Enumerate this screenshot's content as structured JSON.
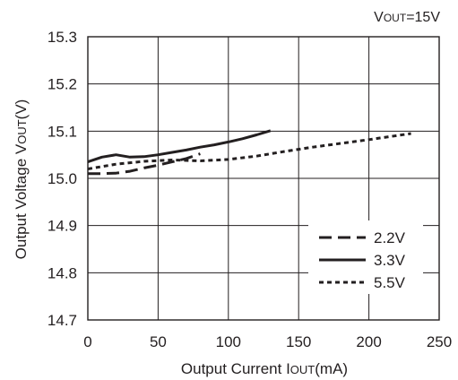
{
  "chart_data": {
    "type": "line",
    "condition": {
      "main": "V",
      "sub": "OUT",
      "tail": "=15V"
    },
    "xlabel": {
      "main": "Output Current I",
      "sub": "OUT",
      "tail": "(mA)"
    },
    "ylabel": {
      "main": "Output Voltage V",
      "sub": "OUT",
      "tail": "(V)"
    },
    "xlim": [
      0,
      250
    ],
    "ylim": [
      14.7,
      15.3
    ],
    "x_ticks": [
      "0",
      "50",
      "100",
      "150",
      "200",
      "250"
    ],
    "y_ticks": [
      "14.7",
      "14.8",
      "14.9",
      "15.0",
      "15.1",
      "15.2",
      "15.3"
    ],
    "grid": true,
    "legend_position": "bottom-right",
    "series": [
      {
        "name": "2.2V",
        "style": "long-dash",
        "x": [
          0,
          10,
          20,
          30,
          40,
          50,
          60,
          70,
          80
        ],
        "y": [
          15.01,
          15.01,
          15.011,
          15.015,
          15.022,
          15.028,
          15.035,
          15.042,
          15.052
        ]
      },
      {
        "name": "3.3V",
        "style": "solid",
        "x": [
          0,
          10,
          20,
          30,
          40,
          50,
          60,
          70,
          80,
          90,
          100,
          110,
          120,
          130
        ],
        "y": [
          15.035,
          15.045,
          15.05,
          15.045,
          15.046,
          15.05,
          15.055,
          15.06,
          15.066,
          15.071,
          15.077,
          15.084,
          15.092,
          15.101
        ]
      },
      {
        "name": "5.5V",
        "style": "short-dash",
        "x": [
          0,
          20,
          40,
          60,
          80,
          100,
          120,
          140,
          160,
          180,
          200,
          230
        ],
        "y": [
          15.02,
          15.03,
          15.036,
          15.039,
          15.037,
          15.04,
          15.047,
          15.057,
          15.066,
          15.074,
          15.082,
          15.095
        ]
      }
    ]
  }
}
